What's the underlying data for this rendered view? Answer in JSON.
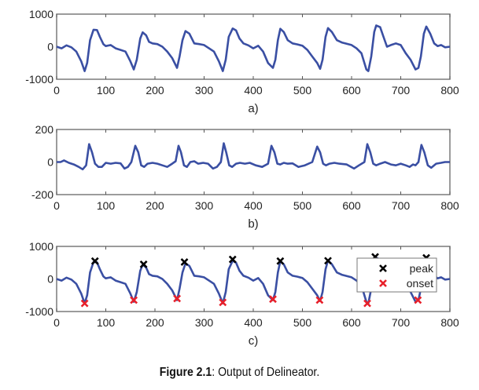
{
  "chart_data": [
    {
      "type": "line",
      "subtitle": "a)",
      "xlim": [
        0,
        800
      ],
      "ylim": [
        -1000,
        1000
      ],
      "xticks": [
        "0",
        "100",
        "200",
        "300",
        "400",
        "500",
        "600",
        "700",
        "800"
      ],
      "yticks": [
        "1000",
        "0",
        "-1000"
      ],
      "series": [
        {
          "name": "signal",
          "color": "#3a4fa3",
          "x": [
            0,
            10,
            20,
            30,
            40,
            50,
            57,
            62,
            68,
            75,
            82,
            88,
            95,
            100,
            110,
            120,
            130,
            140,
            150,
            157,
            163,
            170,
            175,
            182,
            188,
            195,
            205,
            215,
            225,
            235,
            245,
            250,
            256,
            262,
            270,
            280,
            290,
            300,
            310,
            320,
            330,
            338,
            344,
            350,
            358,
            365,
            372,
            380,
            390,
            400,
            410,
            420,
            430,
            440,
            445,
            450,
            455,
            462,
            470,
            480,
            490,
            500,
            510,
            520,
            530,
            536,
            541,
            547,
            552,
            560,
            570,
            580,
            590,
            600,
            610,
            620,
            630,
            634,
            640,
            646,
            650,
            658,
            665,
            672,
            680,
            690,
            700,
            710,
            720,
            730,
            736,
            741,
            747,
            752,
            760,
            768,
            775,
            782,
            790,
            800
          ],
          "y": [
            0,
            -50,
            40,
            -20,
            -150,
            -450,
            -750,
            -500,
            200,
            520,
            510,
            300,
            80,
            20,
            50,
            -50,
            -100,
            -150,
            -450,
            -700,
            -400,
            250,
            440,
            350,
            150,
            100,
            80,
            0,
            -150,
            -350,
            -650,
            -300,
            200,
            480,
            400,
            100,
            80,
            50,
            -50,
            -150,
            -450,
            -750,
            -400,
            300,
            560,
            500,
            250,
            100,
            40,
            -50,
            30,
            -150,
            -500,
            -650,
            -400,
            200,
            550,
            450,
            200,
            100,
            70,
            30,
            -100,
            -300,
            -500,
            -680,
            -400,
            300,
            570,
            450,
            200,
            130,
            90,
            50,
            -50,
            -200,
            -700,
            -750,
            -300,
            450,
            650,
            600,
            300,
            0,
            50,
            100,
            50,
            -200,
            -400,
            -700,
            -650,
            -300,
            400,
            620,
            400,
            100,
            20,
            50,
            -20,
            0
          ]
        }
      ]
    },
    {
      "type": "line",
      "subtitle": "b)",
      "xlim": [
        0,
        800
      ],
      "ylim": [
        -200,
        200
      ],
      "xticks": [
        "0",
        "100",
        "200",
        "300",
        "400",
        "500",
        "600",
        "700",
        "800"
      ],
      "yticks": [
        "200",
        "0",
        "-200"
      ],
      "series": [
        {
          "name": "filtered",
          "color": "#3a4fa3",
          "x": [
            0,
            8,
            15,
            25,
            35,
            45,
            53,
            60,
            66,
            72,
            78,
            85,
            92,
            100,
            110,
            120,
            130,
            138,
            145,
            152,
            160,
            166,
            172,
            178,
            185,
            195,
            205,
            215,
            225,
            235,
            242,
            248,
            253,
            259,
            265,
            272,
            280,
            288,
            298,
            308,
            318,
            326,
            334,
            340,
            345,
            351,
            357,
            365,
            373,
            383,
            393,
            405,
            418,
            430,
            437,
            443,
            449,
            455,
            462,
            470,
            480,
            492,
            505,
            520,
            530,
            536,
            542,
            548,
            555,
            565,
            575,
            590,
            605,
            615,
            626,
            632,
            638,
            644,
            650,
            658,
            668,
            680,
            690,
            700,
            710,
            718,
            725,
            730,
            736,
            742,
            748,
            755,
            762,
            772,
            782,
            790,
            800
          ],
          "y": [
            0,
            0,
            10,
            -5,
            -15,
            -30,
            -45,
            -20,
            110,
            60,
            -10,
            -30,
            -30,
            -5,
            -10,
            -5,
            -8,
            -40,
            -30,
            0,
            100,
            60,
            -20,
            -30,
            -10,
            -5,
            -10,
            -20,
            -30,
            -10,
            5,
            100,
            60,
            -20,
            -30,
            0,
            5,
            -10,
            -5,
            -10,
            -40,
            -30,
            0,
            115,
            60,
            -20,
            -30,
            -10,
            -5,
            -10,
            -5,
            -20,
            -30,
            -10,
            100,
            60,
            -10,
            -15,
            -5,
            -10,
            -8,
            -30,
            -20,
            0,
            95,
            60,
            -10,
            -20,
            -10,
            -5,
            -10,
            -15,
            -40,
            -20,
            0,
            110,
            60,
            -10,
            -20,
            -10,
            0,
            -15,
            -20,
            -10,
            -20,
            -30,
            -15,
            -20,
            0,
            105,
            60,
            -20,
            -35,
            -10,
            -5,
            0,
            0
          ]
        }
      ]
    },
    {
      "type": "line",
      "subtitle": "c)",
      "xlim": [
        0,
        800
      ],
      "ylim": [
        -1000,
        1000
      ],
      "xticks": [
        "0",
        "100",
        "200",
        "300",
        "400",
        "500",
        "600",
        "700",
        "800"
      ],
      "yticks": [
        "1000",
        "0",
        "-1000"
      ],
      "series": [
        {
          "name": "signal",
          "color": "#3a4fa3",
          "ref": "a"
        },
        {
          "name": "peak",
          "marker": "x",
          "color": "#000000",
          "x": [
            78,
            177,
            260,
            358,
            455,
            552,
            648,
            752
          ],
          "y": [
            550,
            450,
            520,
            600,
            550,
            560,
            680,
            650
          ]
        },
        {
          "name": "onset",
          "marker": "x",
          "color": "#e8202a",
          "x": [
            57,
            157,
            245,
            338,
            440,
            535,
            632,
            735
          ],
          "y": [
            -750,
            -650,
            -600,
            -720,
            -620,
            -650,
            -750,
            -650
          ]
        }
      ],
      "legend": {
        "position": "top-right",
        "entries": [
          {
            "label": "peak",
            "color": "#000000"
          },
          {
            "label": "onset",
            "color": "#e8202a"
          }
        ]
      }
    }
  ],
  "caption": {
    "label": "Figure 2.1",
    "text": ": Output of Delineator."
  }
}
